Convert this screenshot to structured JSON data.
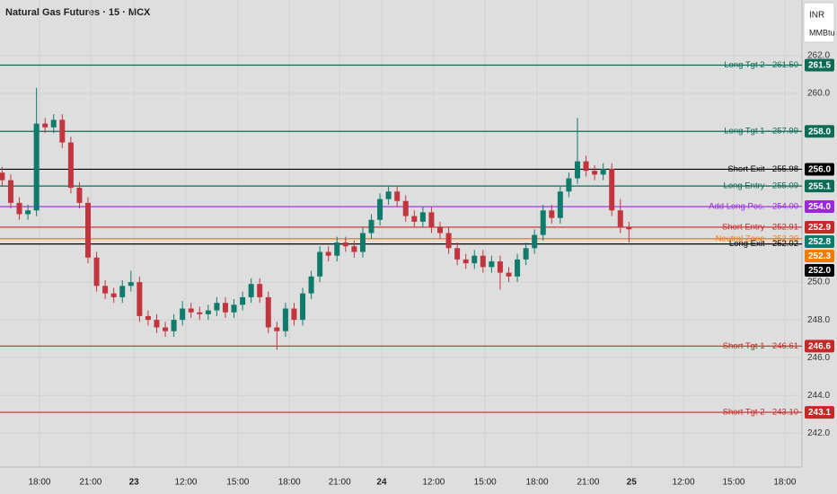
{
  "chart_data": {
    "type": "candlestick",
    "title": "Natural Gas Futures · 15 · MCX",
    "currency": "INR",
    "unit": "MMBtu",
    "up_color": "#0f7b6c",
    "down_color": "#c2353f",
    "xlim": [
      0,
      186.8
    ],
    "xticks": [
      {
        "value": 9.2,
        "label": "18:00"
      },
      {
        "value": 21.1,
        "label": "21:00"
      },
      {
        "value": 31.2,
        "label": "23"
      },
      {
        "value": 43.3,
        "label": "12:00"
      },
      {
        "value": 55.4,
        "label": "15:00"
      },
      {
        "value": 67.4,
        "label": "18:00"
      },
      {
        "value": 79.1,
        "label": "21:00"
      },
      {
        "value": 88.9,
        "label": "24"
      },
      {
        "value": 101.0,
        "label": "12:00"
      },
      {
        "value": 113.0,
        "label": "15:00"
      },
      {
        "value": 125.1,
        "label": "18:00"
      },
      {
        "value": 137.0,
        "label": "21:00"
      },
      {
        "value": 147.1,
        "label": "25"
      },
      {
        "value": 159.2,
        "label": "12:00"
      },
      {
        "value": 170.9,
        "label": "15:00"
      },
      {
        "value": 182.8,
        "label": "18:00"
      }
    ],
    "ylim": [
      240.2,
      264.95
    ],
    "yticks": [
      {
        "value": 262,
        "label": "262.0"
      },
      {
        "value": 260,
        "label": "260.0"
      },
      {
        "value": 250,
        "label": "250.0"
      },
      {
        "value": 248,
        "label": "248.0"
      },
      {
        "value": 246,
        "label": "246.0"
      },
      {
        "value": 244,
        "label": "244.0"
      },
      {
        "value": 242,
        "label": "242.0"
      }
    ],
    "grid": true,
    "x": [
      0.5,
      2.5,
      4.5,
      6.5,
      8.5,
      10.5,
      12.5,
      14.5,
      16.5,
      18.5,
      20.5,
      22.5,
      24.5,
      26.5,
      28.5,
      30.5,
      32.5,
      34.5,
      36.5,
      38.5,
      40.5,
      42.5,
      44.5,
      46.5,
      48.5,
      50.5,
      52.5,
      54.5,
      56.5,
      58.5,
      60.5,
      62.5,
      64.5,
      66.5,
      68.5,
      70.5,
      72.5,
      74.5,
      76.5,
      78.5,
      80.5,
      82.5,
      84.5,
      86.5,
      88.5,
      90.5,
      92.5,
      94.5,
      96.5,
      98.5,
      100.5,
      102.5,
      104.5,
      106.5,
      108.5,
      110.5,
      112.5,
      114.5,
      116.5,
      118.5,
      120.5,
      122.5,
      124.5,
      126.5,
      128.5,
      130.5,
      132.5,
      134.5,
      136.5,
      138.5,
      140.5,
      142.5,
      144.5,
      146.5
    ],
    "open": [
      255.8,
      255.4,
      254.2,
      253.6,
      253.8,
      258.4,
      258.2,
      258.6,
      257.4,
      255.0,
      254.2,
      251.3,
      249.8,
      249.4,
      249.2,
      249.8,
      250.0,
      248.2,
      248.0,
      247.6,
      247.4,
      248.0,
      248.6,
      248.4,
      248.3,
      248.5,
      248.9,
      248.4,
      248.8,
      249.2,
      249.9,
      249.2,
      247.6,
      247.4,
      248.6,
      248.0,
      249.4,
      250.3,
      251.6,
      251.4,
      252.1,
      251.9,
      251.6,
      252.6,
      253.3,
      254.4,
      254.8,
      254.3,
      253.5,
      253.2,
      253.7,
      252.9,
      252.6,
      251.8,
      251.2,
      251.0,
      251.4,
      250.8,
      251.1,
      250.5,
      250.3,
      251.2,
      251.8,
      252.5,
      253.8,
      253.4,
      254.8,
      255.5,
      256.4,
      255.9,
      255.7,
      256.0,
      253.8,
      252.9
    ],
    "high": [
      256.1,
      255.7,
      254.5,
      254.1,
      260.3,
      258.7,
      258.9,
      258.9,
      257.7,
      255.3,
      254.5,
      251.6,
      250.1,
      249.7,
      250.1,
      250.6,
      250.3,
      248.5,
      248.3,
      247.9,
      248.3,
      249.0,
      248.9,
      248.7,
      248.8,
      249.2,
      249.2,
      249.1,
      249.5,
      250.2,
      250.2,
      249.5,
      247.9,
      248.9,
      248.9,
      249.7,
      250.6,
      251.9,
      251.9,
      252.4,
      252.4,
      252.2,
      252.9,
      253.6,
      254.7,
      255.1,
      255.1,
      254.6,
      253.8,
      254.0,
      254.0,
      253.2,
      252.9,
      252.1,
      251.5,
      251.7,
      251.7,
      251.4,
      251.4,
      250.8,
      251.5,
      252.1,
      252.8,
      254.1,
      254.1,
      255.1,
      255.8,
      258.7,
      256.7,
      256.2,
      256.3,
      256.3,
      254.4,
      253.2
    ],
    "low": [
      255.1,
      253.9,
      253.3,
      253.3,
      253.5,
      257.9,
      257.9,
      257.1,
      254.7,
      253.9,
      251.0,
      249.5,
      249.1,
      248.9,
      248.9,
      249.5,
      247.9,
      247.7,
      247.3,
      247.1,
      247.1,
      247.7,
      248.1,
      248.0,
      248.0,
      248.2,
      248.1,
      248.1,
      248.5,
      248.9,
      248.9,
      247.3,
      246.4,
      247.1,
      247.7,
      247.7,
      249.1,
      250.0,
      251.1,
      251.1,
      251.6,
      251.3,
      251.3,
      252.3,
      253.0,
      254.1,
      254.0,
      253.2,
      252.9,
      252.9,
      252.6,
      252.3,
      251.5,
      250.9,
      250.7,
      250.7,
      250.5,
      250.5,
      249.6,
      250.0,
      250.0,
      250.9,
      251.5,
      252.2,
      253.1,
      253.1,
      254.5,
      255.2,
      255.6,
      255.4,
      255.4,
      253.5,
      252.6,
      252.1
    ],
    "close": [
      255.4,
      254.2,
      253.6,
      253.8,
      258.4,
      258.2,
      258.6,
      257.4,
      255.0,
      254.2,
      251.3,
      249.8,
      249.4,
      249.2,
      249.8,
      250.0,
      248.2,
      248.0,
      247.6,
      247.4,
      248.0,
      248.6,
      248.4,
      248.3,
      248.5,
      248.9,
      248.4,
      248.8,
      249.2,
      249.9,
      249.2,
      247.6,
      247.4,
      248.6,
      248.0,
      249.4,
      250.3,
      251.6,
      251.4,
      252.1,
      251.9,
      251.6,
      252.6,
      253.3,
      254.4,
      254.8,
      254.3,
      253.5,
      253.2,
      253.7,
      252.9,
      252.6,
      251.8,
      251.2,
      251.0,
      251.4,
      250.8,
      251.1,
      250.5,
      250.3,
      251.2,
      251.8,
      252.5,
      253.8,
      253.4,
      254.8,
      255.5,
      256.4,
      255.9,
      255.7,
      256.0,
      253.8,
      252.9,
      252.8
    ],
    "last_price": 252.8,
    "levels": [
      {
        "name": "Long Tgt 2 - 261.50",
        "value": 261.5,
        "value_label": "261.5",
        "color": "#0b6b55"
      },
      {
        "name": "Long Tgt 1 - 257.99",
        "value": 257.99,
        "value_label": "258.0",
        "color": "#0b6b55"
      },
      {
        "name": "Short Exit - 255.98",
        "value": 255.98,
        "value_label": "256.0",
        "color": "#000000"
      },
      {
        "name": "Long Entry - 255.09",
        "value": 255.09,
        "value_label": "255.1",
        "color": "#0b6b55"
      },
      {
        "name": "Add Long Pos. - 254.00",
        "value": 254.0,
        "value_label": "254.0",
        "color": "#9c27e0"
      },
      {
        "name": "Short Entry - 252.91",
        "value": 252.91,
        "value_label": "252.9",
        "color": "#c62828"
      },
      {
        "name": "Neutral Zone - 252.30",
        "value": 252.3,
        "value_label": "252.3",
        "color": "#f57c00"
      },
      {
        "name": "Long Exit - 252.02",
        "value": 252.02,
        "value_label": "252.0",
        "color": "#000000"
      },
      {
        "name": "Short Tgt 1 - 246.61",
        "value": 246.61,
        "value_label": "246.6",
        "color": "#c62828"
      },
      {
        "name": "Short Tgt 2 - 243.10",
        "value": 243.1,
        "value_label": "243.1",
        "color": "#c62828"
      }
    ]
  }
}
